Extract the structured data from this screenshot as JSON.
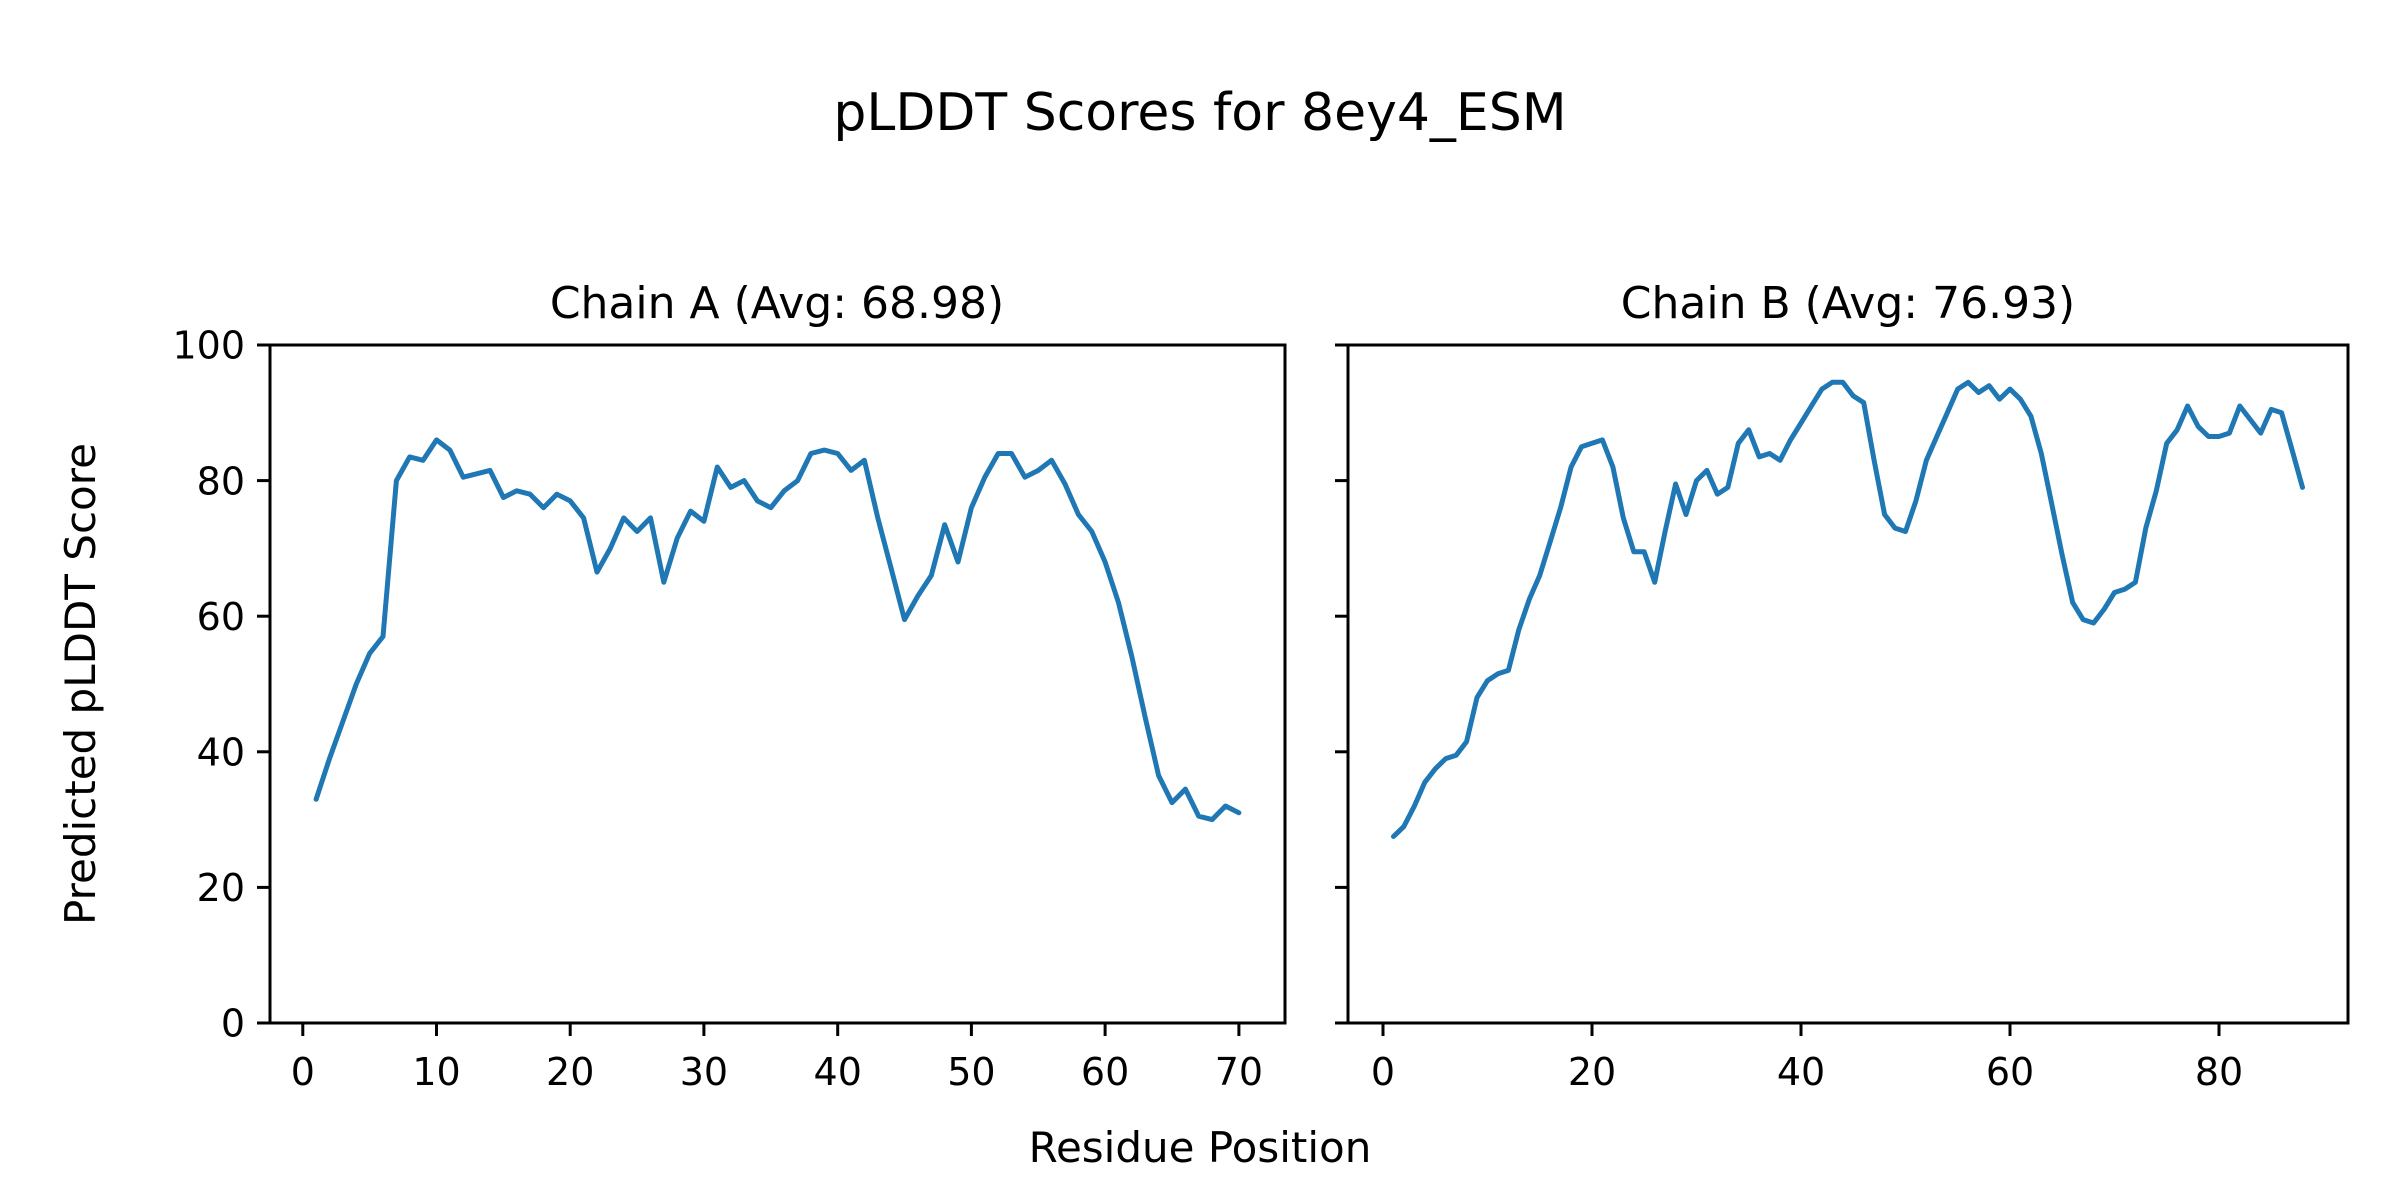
{
  "figure": {
    "title": "pLDDT Scores for 8ey4_ESM",
    "xlabel": "Residue Position",
    "ylabel": "Predicted pLDDT Score"
  },
  "chart_data": {
    "type": "line",
    "line_color": "#1f77b4",
    "background": "#ffffff",
    "grid": false,
    "legend": "none",
    "panels": [
      {
        "title": "Chain A (Avg: 68.98)",
        "avg_label": "68.98",
        "xlim": [
          -2.45,
          73.45
        ],
        "ylim": [
          0,
          100
        ],
        "x_ticks": [
          0,
          10,
          20,
          30,
          40,
          50,
          60,
          70
        ],
        "y_ticks": [
          0,
          20,
          40,
          60,
          80,
          100
        ],
        "show_y_tick_labels": true,
        "x_start": 1,
        "values": [
          33,
          39,
          44.5,
          50,
          54.5,
          57,
          80,
          83.5,
          83,
          86,
          84.5,
          80.5,
          81,
          81.5,
          77.5,
          78.5,
          78,
          76,
          78,
          77,
          74.5,
          66.5,
          70,
          74.5,
          72.5,
          74.5,
          65,
          71.5,
          75.5,
          74,
          82,
          79,
          80,
          77,
          76,
          78.5,
          80,
          84,
          84.5,
          84,
          81.5,
          83,
          74.5,
          67,
          59.5,
          63,
          66,
          73.5,
          68,
          76,
          80.5,
          84,
          84,
          80.5,
          81.5,
          83,
          79.5,
          75,
          72.5,
          68,
          62,
          54,
          45,
          36.5,
          32.5,
          34.5,
          30.5,
          30,
          32,
          31
        ]
      },
      {
        "title": "Chain B (Avg: 76.93)",
        "avg_label": "76.93",
        "xlim": [
          -3.35,
          92.35
        ],
        "ylim": [
          0,
          100
        ],
        "x_ticks": [
          0,
          20,
          40,
          60,
          80
        ],
        "y_ticks": [
          0,
          20,
          40,
          60,
          80,
          100
        ],
        "show_y_tick_labels": false,
        "x_start": 1,
        "values": [
          27.5,
          29,
          32,
          35.5,
          37.5,
          39,
          39.5,
          41.5,
          48,
          50.5,
          51.5,
          52,
          58,
          62.5,
          66,
          71,
          76,
          82,
          85,
          85.5,
          86,
          82,
          74.5,
          69.5,
          69.5,
          65,
          72.5,
          79.5,
          75,
          80,
          81.5,
          78,
          79,
          85.5,
          87.5,
          83.5,
          84,
          83,
          86,
          88.5,
          91,
          93.5,
          94.5,
          94.5,
          92.5,
          91.5,
          83,
          75,
          73,
          72.5,
          77,
          83,
          86.5,
          90,
          93.5,
          94.5,
          93,
          94,
          92,
          93.5,
          92,
          89.5,
          84,
          76.5,
          69,
          62,
          59.5,
          59,
          61,
          63.5,
          64,
          65,
          73,
          78.5,
          85.5,
          87.5,
          91,
          88,
          86.5,
          86.5,
          87,
          91,
          89,
          87,
          90.5,
          90,
          84.5,
          79
        ]
      }
    ]
  }
}
